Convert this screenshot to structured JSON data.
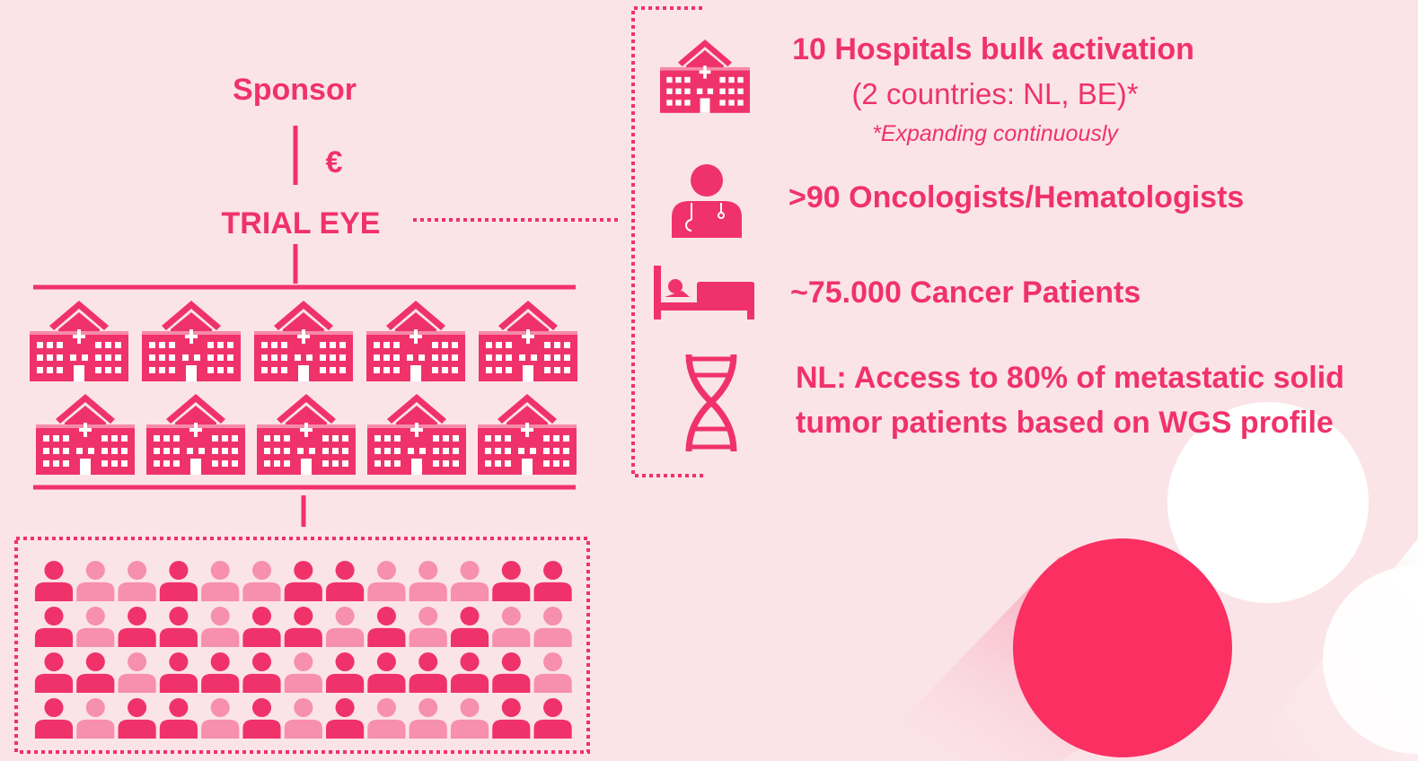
{
  "sponsor": "Sponsor",
  "currency": "€",
  "hub": "TRIAL EYE",
  "facts": [
    {
      "title": "10 Hospitals bulk activation",
      "detail": "(2 countries: NL, BE)*",
      "note": "*Expanding continuously"
    },
    {
      "title": ">90 Oncologists/Hematologists"
    },
    {
      "title": "~75.000 Cancer Patients"
    },
    {
      "lines": [
        "NL: Access to 80% of metastatic solid",
        "tumor patients based on WGS profile"
      ]
    }
  ]
}
